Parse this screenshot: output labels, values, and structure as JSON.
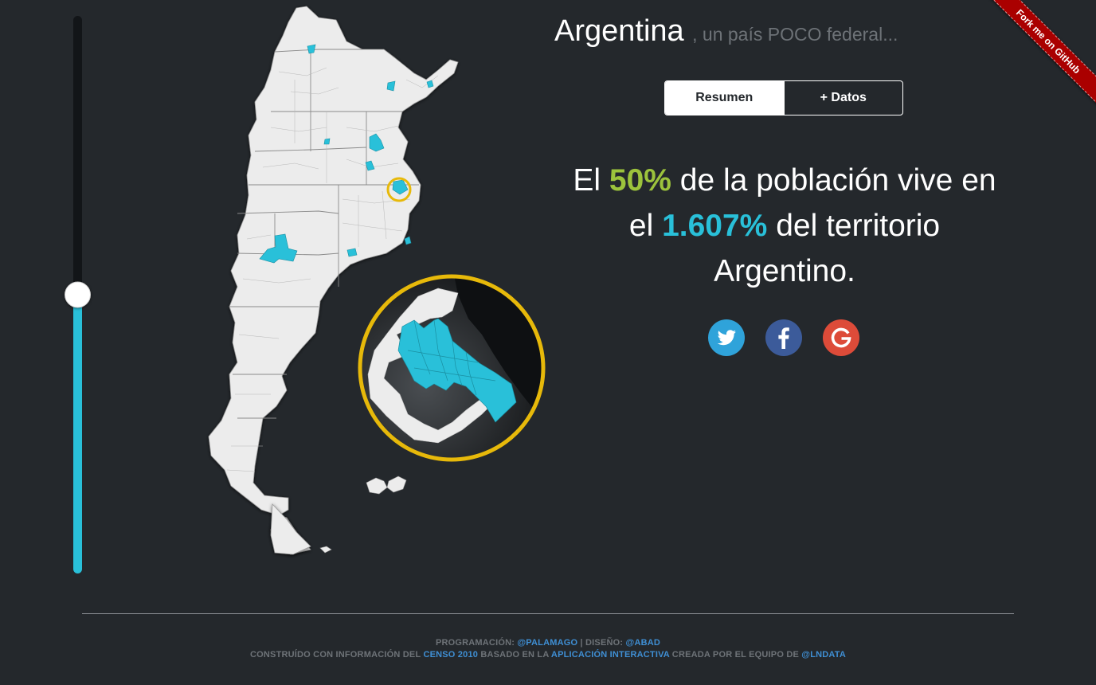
{
  "header": {
    "title": "Argentina",
    "subtitle": ", un país POCO federal..."
  },
  "tabs": [
    {
      "label": "Resumen",
      "active": true
    },
    {
      "label": "+ Datos",
      "active": false
    }
  ],
  "headline": {
    "part1": "El ",
    "population_pct": "50%",
    "part2": " de la población vive en el ",
    "territory_pct": "1.607%",
    "part3": " del territorio Argentino."
  },
  "slider": {
    "population_fraction": 0.5
  },
  "social": [
    {
      "name": "twitter",
      "color": "#2fa3da"
    },
    {
      "name": "facebook",
      "color": "#3c5b9a"
    },
    {
      "name": "google",
      "color": "#dd4b39"
    }
  ],
  "footer": {
    "line1": {
      "prefix": "PROGRAMACIÓN: ",
      "link1": "@PALAMAGO",
      "middle": " | DISEÑO: ",
      "link2": "@ABAD"
    },
    "line2": {
      "prefix": "CONSTRUÍDO CON INFORMACIÓN DEL ",
      "link1": "CENSO 2010",
      "middle1": " BASADO EN LA ",
      "link2": "APLICACIÓN INTERACTIVA",
      "middle2": " CREADA POR EL EQUIPO DE ",
      "link3": "@LNDATA"
    }
  },
  "ribbon": {
    "label": "Fork me on GitHub"
  },
  "colors": {
    "background": "#24282c",
    "accent_blue": "#29c0d9",
    "accent_green": "#9cc33c",
    "zoom_ring": "#e7b90a",
    "ribbon": "#aa0000"
  }
}
